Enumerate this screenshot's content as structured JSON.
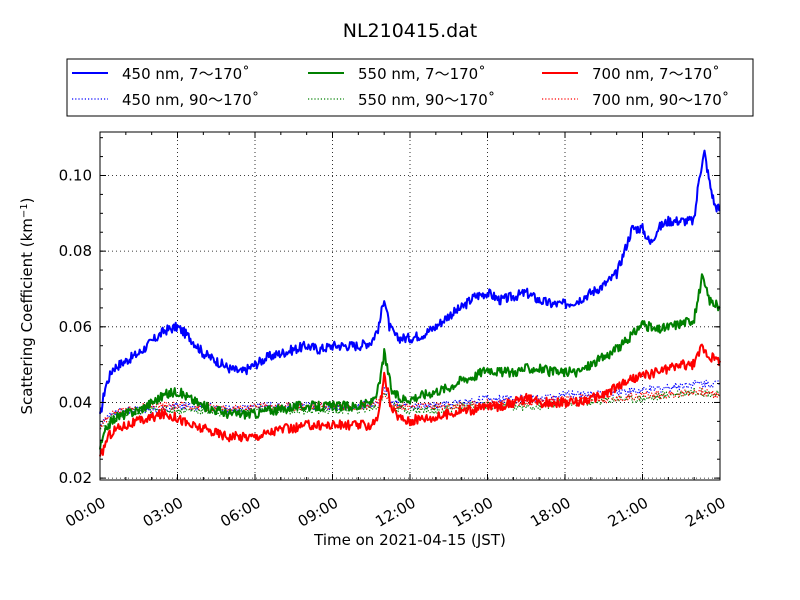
{
  "chart_data": {
    "type": "line",
    "title": "NL210415.dat",
    "xlabel": "Time on 2021-04-15 (JST)",
    "ylabel_main": "Scattering Coefficient (km",
    "ylabel_sup": "−1",
    "ylabel_close": ")",
    "xlim": [
      0,
      24
    ],
    "ylim": [
      0.0195,
      0.1115
    ],
    "grid": true,
    "legend_position": "top",
    "x_ticks": [
      0,
      3,
      6,
      9,
      12,
      15,
      18,
      21,
      24
    ],
    "x_tick_labels": [
      "00:00",
      "03:00",
      "06:00",
      "09:00",
      "12:00",
      "15:00",
      "18:00",
      "21:00",
      "24:00"
    ],
    "y_ticks": [
      0.02,
      0.04,
      0.06,
      0.08,
      0.1
    ],
    "y_tick_labels": [
      "0.02",
      "0.04",
      "0.06",
      "0.08",
      "0.10"
    ],
    "series": [
      {
        "name": "450 nm, 7～170˚",
        "color": "#0000ff",
        "style": "solid",
        "x": [
          0,
          0.2,
          0.5,
          1,
          1.5,
          2,
          2.5,
          3,
          3.5,
          4,
          4.5,
          5,
          5.5,
          6,
          6.5,
          7,
          7.5,
          8,
          8.5,
          9,
          9.5,
          10,
          10.5,
          10.8,
          11,
          11.2,
          11.5,
          12,
          12.5,
          13,
          13.5,
          14,
          14.5,
          15,
          15.5,
          16,
          16.5,
          17,
          17.5,
          18,
          18.5,
          19,
          19.5,
          20,
          20.3,
          20.6,
          21,
          21.3,
          21.6,
          22,
          22.5,
          23,
          23.2,
          23.4,
          23.6,
          23.8,
          24
        ],
        "y": [
          0.036,
          0.044,
          0.049,
          0.051,
          0.053,
          0.056,
          0.059,
          0.06,
          0.057,
          0.053,
          0.051,
          0.049,
          0.048,
          0.05,
          0.052,
          0.053,
          0.054,
          0.055,
          0.054,
          0.055,
          0.055,
          0.055,
          0.056,
          0.06,
          0.068,
          0.06,
          0.057,
          0.057,
          0.058,
          0.06,
          0.063,
          0.065,
          0.068,
          0.069,
          0.067,
          0.068,
          0.069,
          0.067,
          0.066,
          0.066,
          0.067,
          0.069,
          0.071,
          0.074,
          0.08,
          0.086,
          0.086,
          0.082,
          0.086,
          0.088,
          0.088,
          0.088,
          0.1,
          0.106,
          0.098,
          0.092,
          0.091
        ]
      },
      {
        "name": "450 nm, 90～170˚",
        "color": "#0000ff",
        "style": "dotted",
        "x": [
          0,
          0.5,
          1,
          2,
          3,
          4,
          5,
          6,
          7,
          8,
          9,
          10,
          10.8,
          11,
          11.3,
          12,
          13,
          14,
          15,
          16,
          17,
          18,
          19,
          20,
          21,
          22,
          23,
          24
        ],
        "y": [
          0.034,
          0.037,
          0.038,
          0.038,
          0.039,
          0.039,
          0.038,
          0.039,
          0.039,
          0.039,
          0.039,
          0.039,
          0.04,
          0.044,
          0.04,
          0.039,
          0.039,
          0.04,
          0.041,
          0.041,
          0.041,
          0.042,
          0.042,
          0.043,
          0.043,
          0.044,
          0.045,
          0.045
        ]
      },
      {
        "name": "550 nm, 7～170˚",
        "color": "#008000",
        "style": "solid",
        "x": [
          0,
          0.3,
          0.6,
          1,
          1.5,
          2,
          2.5,
          3,
          3.5,
          4,
          4.5,
          5,
          5.5,
          6,
          6.5,
          7,
          7.5,
          8,
          8.5,
          9,
          9.5,
          10,
          10.5,
          10.8,
          11,
          11.3,
          11.6,
          12,
          12.5,
          13,
          13.5,
          14,
          14.5,
          15,
          15.5,
          16,
          16.5,
          17,
          17.5,
          18,
          18.5,
          19,
          19.5,
          20,
          20.5,
          21,
          21.5,
          22,
          22.5,
          23,
          23.3,
          23.6,
          24
        ],
        "y": [
          0.028,
          0.034,
          0.036,
          0.037,
          0.038,
          0.04,
          0.042,
          0.043,
          0.041,
          0.039,
          0.038,
          0.037,
          0.037,
          0.037,
          0.038,
          0.038,
          0.039,
          0.039,
          0.039,
          0.039,
          0.039,
          0.039,
          0.04,
          0.044,
          0.053,
          0.043,
          0.041,
          0.041,
          0.042,
          0.043,
          0.044,
          0.046,
          0.047,
          0.049,
          0.048,
          0.048,
          0.049,
          0.049,
          0.048,
          0.048,
          0.048,
          0.05,
          0.052,
          0.054,
          0.057,
          0.061,
          0.059,
          0.06,
          0.061,
          0.062,
          0.073,
          0.067,
          0.065
        ]
      },
      {
        "name": "550 nm, 90～170˚",
        "color": "#008000",
        "style": "dotted",
        "x": [
          0,
          0.5,
          1,
          2,
          3,
          4,
          5,
          6,
          7,
          8,
          9,
          10,
          10.8,
          11,
          11.3,
          12,
          13,
          14,
          15,
          16,
          17,
          18,
          19,
          20,
          21,
          22,
          23,
          24
        ],
        "y": [
          0.033,
          0.036,
          0.037,
          0.038,
          0.038,
          0.038,
          0.037,
          0.038,
          0.038,
          0.038,
          0.038,
          0.038,
          0.039,
          0.043,
          0.039,
          0.038,
          0.038,
          0.039,
          0.039,
          0.039,
          0.039,
          0.04,
          0.04,
          0.041,
          0.041,
          0.042,
          0.043,
          0.042
        ]
      },
      {
        "name": "700 nm, 7～170˚",
        "color": "#ff0000",
        "style": "solid",
        "x": [
          0,
          0.3,
          0.6,
          1,
          1.5,
          2,
          2.5,
          3,
          3.5,
          4,
          4.5,
          5,
          5.5,
          6,
          6.5,
          7,
          7.5,
          8,
          8.5,
          9,
          9.5,
          10,
          10.5,
          10.8,
          11,
          11.3,
          11.6,
          12,
          12.5,
          13,
          13.5,
          14,
          14.5,
          15,
          15.5,
          16,
          16.5,
          17,
          17.5,
          18,
          18.5,
          19,
          19.5,
          20,
          20.5,
          21,
          21.5,
          22,
          22.5,
          23,
          23.3,
          23.6,
          24
        ],
        "y": [
          0.025,
          0.031,
          0.033,
          0.034,
          0.035,
          0.036,
          0.037,
          0.036,
          0.034,
          0.033,
          0.032,
          0.031,
          0.031,
          0.031,
          0.032,
          0.033,
          0.033,
          0.034,
          0.034,
          0.034,
          0.034,
          0.034,
          0.034,
          0.037,
          0.047,
          0.038,
          0.036,
          0.035,
          0.036,
          0.036,
          0.037,
          0.038,
          0.038,
          0.039,
          0.039,
          0.04,
          0.041,
          0.04,
          0.04,
          0.04,
          0.04,
          0.041,
          0.042,
          0.044,
          0.046,
          0.047,
          0.048,
          0.049,
          0.05,
          0.05,
          0.055,
          0.052,
          0.051
        ]
      },
      {
        "name": "700 nm, 90～170˚",
        "color": "#ff0000",
        "style": "dotted",
        "x": [
          0,
          0.5,
          1,
          2,
          3,
          4,
          5,
          6,
          7,
          8,
          9,
          10,
          10.8,
          11,
          11.3,
          12,
          13,
          14,
          15,
          16,
          17,
          18,
          19,
          20,
          21,
          22,
          23,
          24
        ],
        "y": [
          0.034,
          0.037,
          0.038,
          0.039,
          0.039,
          0.039,
          0.038,
          0.039,
          0.039,
          0.039,
          0.039,
          0.039,
          0.04,
          0.043,
          0.039,
          0.039,
          0.039,
          0.039,
          0.04,
          0.04,
          0.04,
          0.041,
          0.041,
          0.041,
          0.042,
          0.042,
          0.043,
          0.042
        ]
      }
    ]
  }
}
